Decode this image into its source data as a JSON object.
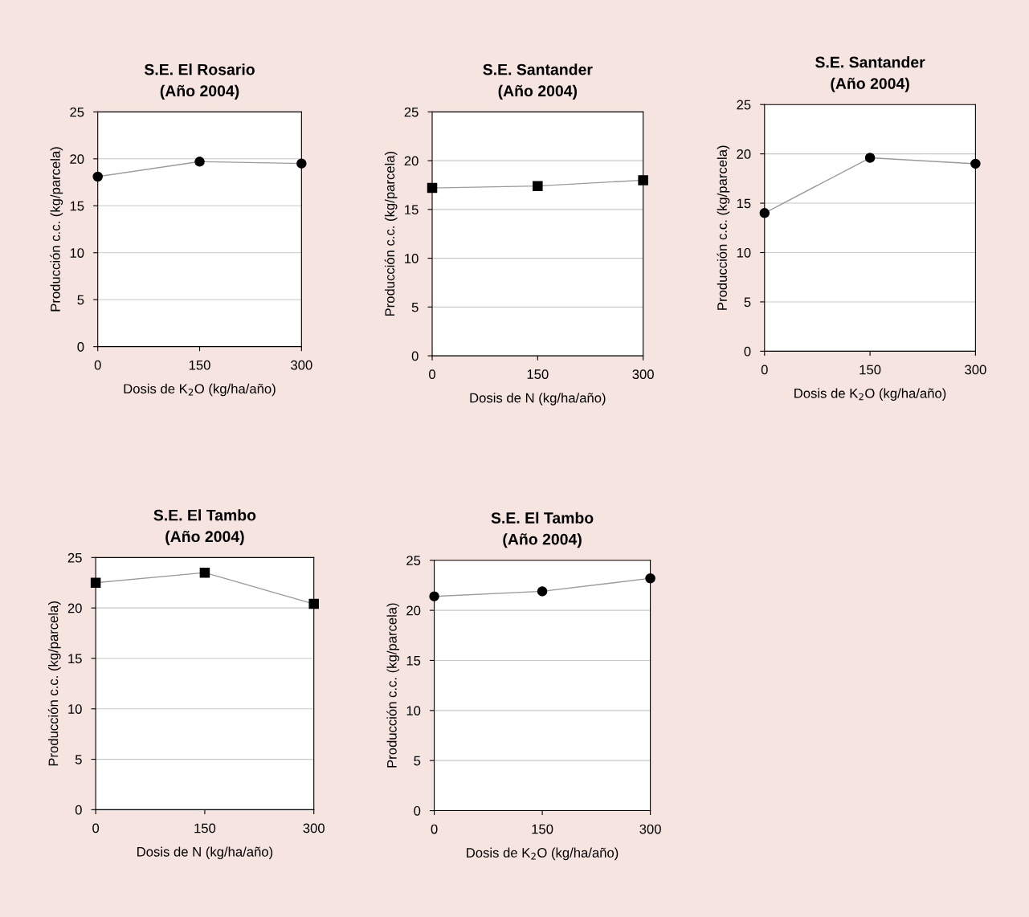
{
  "chart_data": [
    {
      "type": "line",
      "title": "S.E. El Rosario\n(Año 2004)",
      "xlabel": "Dosis de K$_{2}$O (kg/ha/año)",
      "ylabel": "Producción c.c. (kg/parcela)",
      "x": [
        0,
        150,
        300
      ],
      "series": [
        {
          "color": "#000000",
          "values": [
            18.1,
            19.7,
            19.5
          ]
        }
      ],
      "xlim": [
        0,
        300
      ],
      "xticks": [
        0,
        150,
        300
      ],
      "ylim": [
        0,
        25
      ],
      "yticks": [
        0,
        5,
        10,
        15,
        20,
        25
      ],
      "grid": "y",
      "marker": "circle",
      "line_style": "solid",
      "legend": false
    },
    {
      "type": "line",
      "title": "S.E. Santander\n(Año 2004)",
      "xlabel": "Dosis de N (kg/ha/año)",
      "ylabel": "Producción c.c. (kg/parcela)",
      "x": [
        0,
        150,
        300
      ],
      "series": [
        {
          "color": "#000000",
          "values": [
            17.2,
            17.4,
            18.0
          ]
        }
      ],
      "xlim": [
        0,
        300
      ],
      "xticks": [
        0,
        150,
        300
      ],
      "ylim": [
        0,
        25
      ],
      "yticks": [
        0,
        5,
        10,
        15,
        20,
        25
      ],
      "grid": "y",
      "marker": "square",
      "line_style": "solid",
      "legend": false
    },
    {
      "type": "line",
      "title": "S.E. Santander\n(Año 2004)",
      "xlabel": "Dosis de K$_{2}$O (kg/ha/año)",
      "ylabel": "Producción c.c. (kg/parcela)",
      "x": [
        0,
        150,
        300
      ],
      "series": [
        {
          "color": "#000000",
          "values": [
            14.0,
            19.6,
            19.0
          ]
        }
      ],
      "xlim": [
        0,
        300
      ],
      "xticks": [
        0,
        150,
        300
      ],
      "ylim": [
        0,
        25
      ],
      "yticks": [
        0,
        5,
        10,
        15,
        20,
        25
      ],
      "grid": "y",
      "marker": "circle",
      "line_style": "solid",
      "legend": false
    },
    {
      "type": "line",
      "title": "S.E. El Tambo\n(Año 2004)",
      "xlabel": "Dosis de N (kg/ha/año)",
      "ylabel": "Producción c.c. (kg/parcela)",
      "x": [
        0,
        150,
        300
      ],
      "series": [
        {
          "color": "#000000",
          "values": [
            22.5,
            23.5,
            20.4
          ]
        }
      ],
      "xlim": [
        0,
        300
      ],
      "xticks": [
        0,
        150,
        300
      ],
      "ylim": [
        0,
        25
      ],
      "yticks": [
        0,
        5,
        10,
        15,
        20,
        25
      ],
      "grid": "y",
      "marker": "square",
      "line_style": "solid",
      "legend": false
    },
    {
      "type": "line",
      "title": "S.E. El Tambo\n(Año 2004)",
      "xlabel": "Dosis de K$_{2}$O (kg/ha/año)",
      "ylabel": "Producción c.c. (kg/parcela)",
      "x": [
        0,
        150,
        300
      ],
      "series": [
        {
          "color": "#000000",
          "values": [
            21.4,
            21.9,
            23.2
          ]
        }
      ],
      "xlim": [
        0,
        300
      ],
      "xticks": [
        0,
        150,
        300
      ],
      "ylim": [
        0,
        25
      ],
      "yticks": [
        0,
        5,
        10,
        15,
        20,
        25
      ],
      "grid": "y",
      "marker": "circle",
      "line_style": "solid",
      "legend": false
    }
  ]
}
